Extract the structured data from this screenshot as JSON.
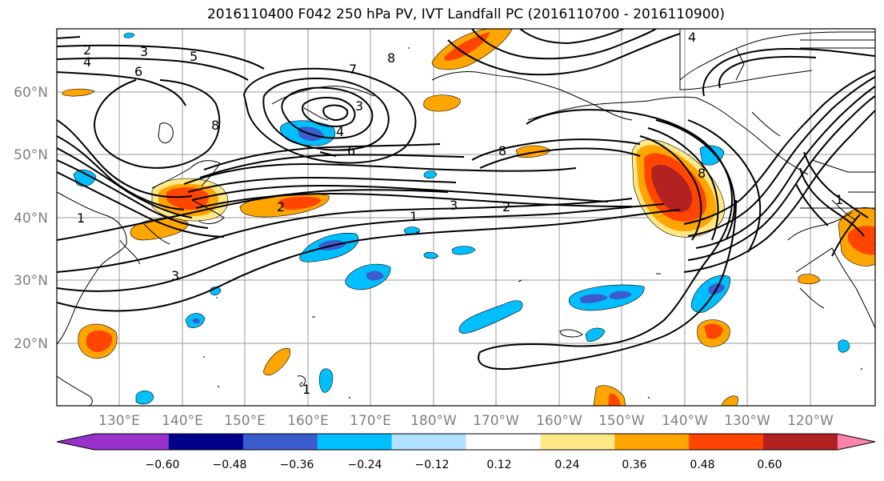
{
  "title": "2016110400 F042 250 hPa PV, IVT Landfall PC (2016110700 - 2016110900)",
  "lat_labels": [
    "20°N",
    "30°N",
    "40°N",
    "50°N",
    "60°N"
  ],
  "lon_labels": [
    "130°E",
    "140°E",
    "150°E",
    "160°E",
    "170°E",
    "180°W",
    "170°W",
    "160°W",
    "150°W",
    "140°W",
    "130°W",
    "120°W"
  ],
  "contour_labels": [
    "2",
    "3",
    "4",
    "5",
    "6",
    "7",
    "8",
    "3",
    "4",
    "6",
    "8",
    "8",
    "2",
    "1",
    "3",
    "2",
    "1",
    "3",
    "8",
    "4",
    "1",
    "1"
  ],
  "colorbar": {
    "ticks": [
      "−0.60",
      "−0.48",
      "−0.36",
      "−0.24",
      "−0.12",
      "0.12",
      "0.24",
      "0.36",
      "0.48",
      "0.60"
    ],
    "colors": [
      "#9932CC",
      "#00008B",
      "#3A5CCC",
      "#00BFFF",
      "#B0E2FF",
      "#FFFFFF",
      "#FFE885",
      "#FFA500",
      "#FF4500",
      "#B22222",
      "#FF82AB"
    ]
  }
}
